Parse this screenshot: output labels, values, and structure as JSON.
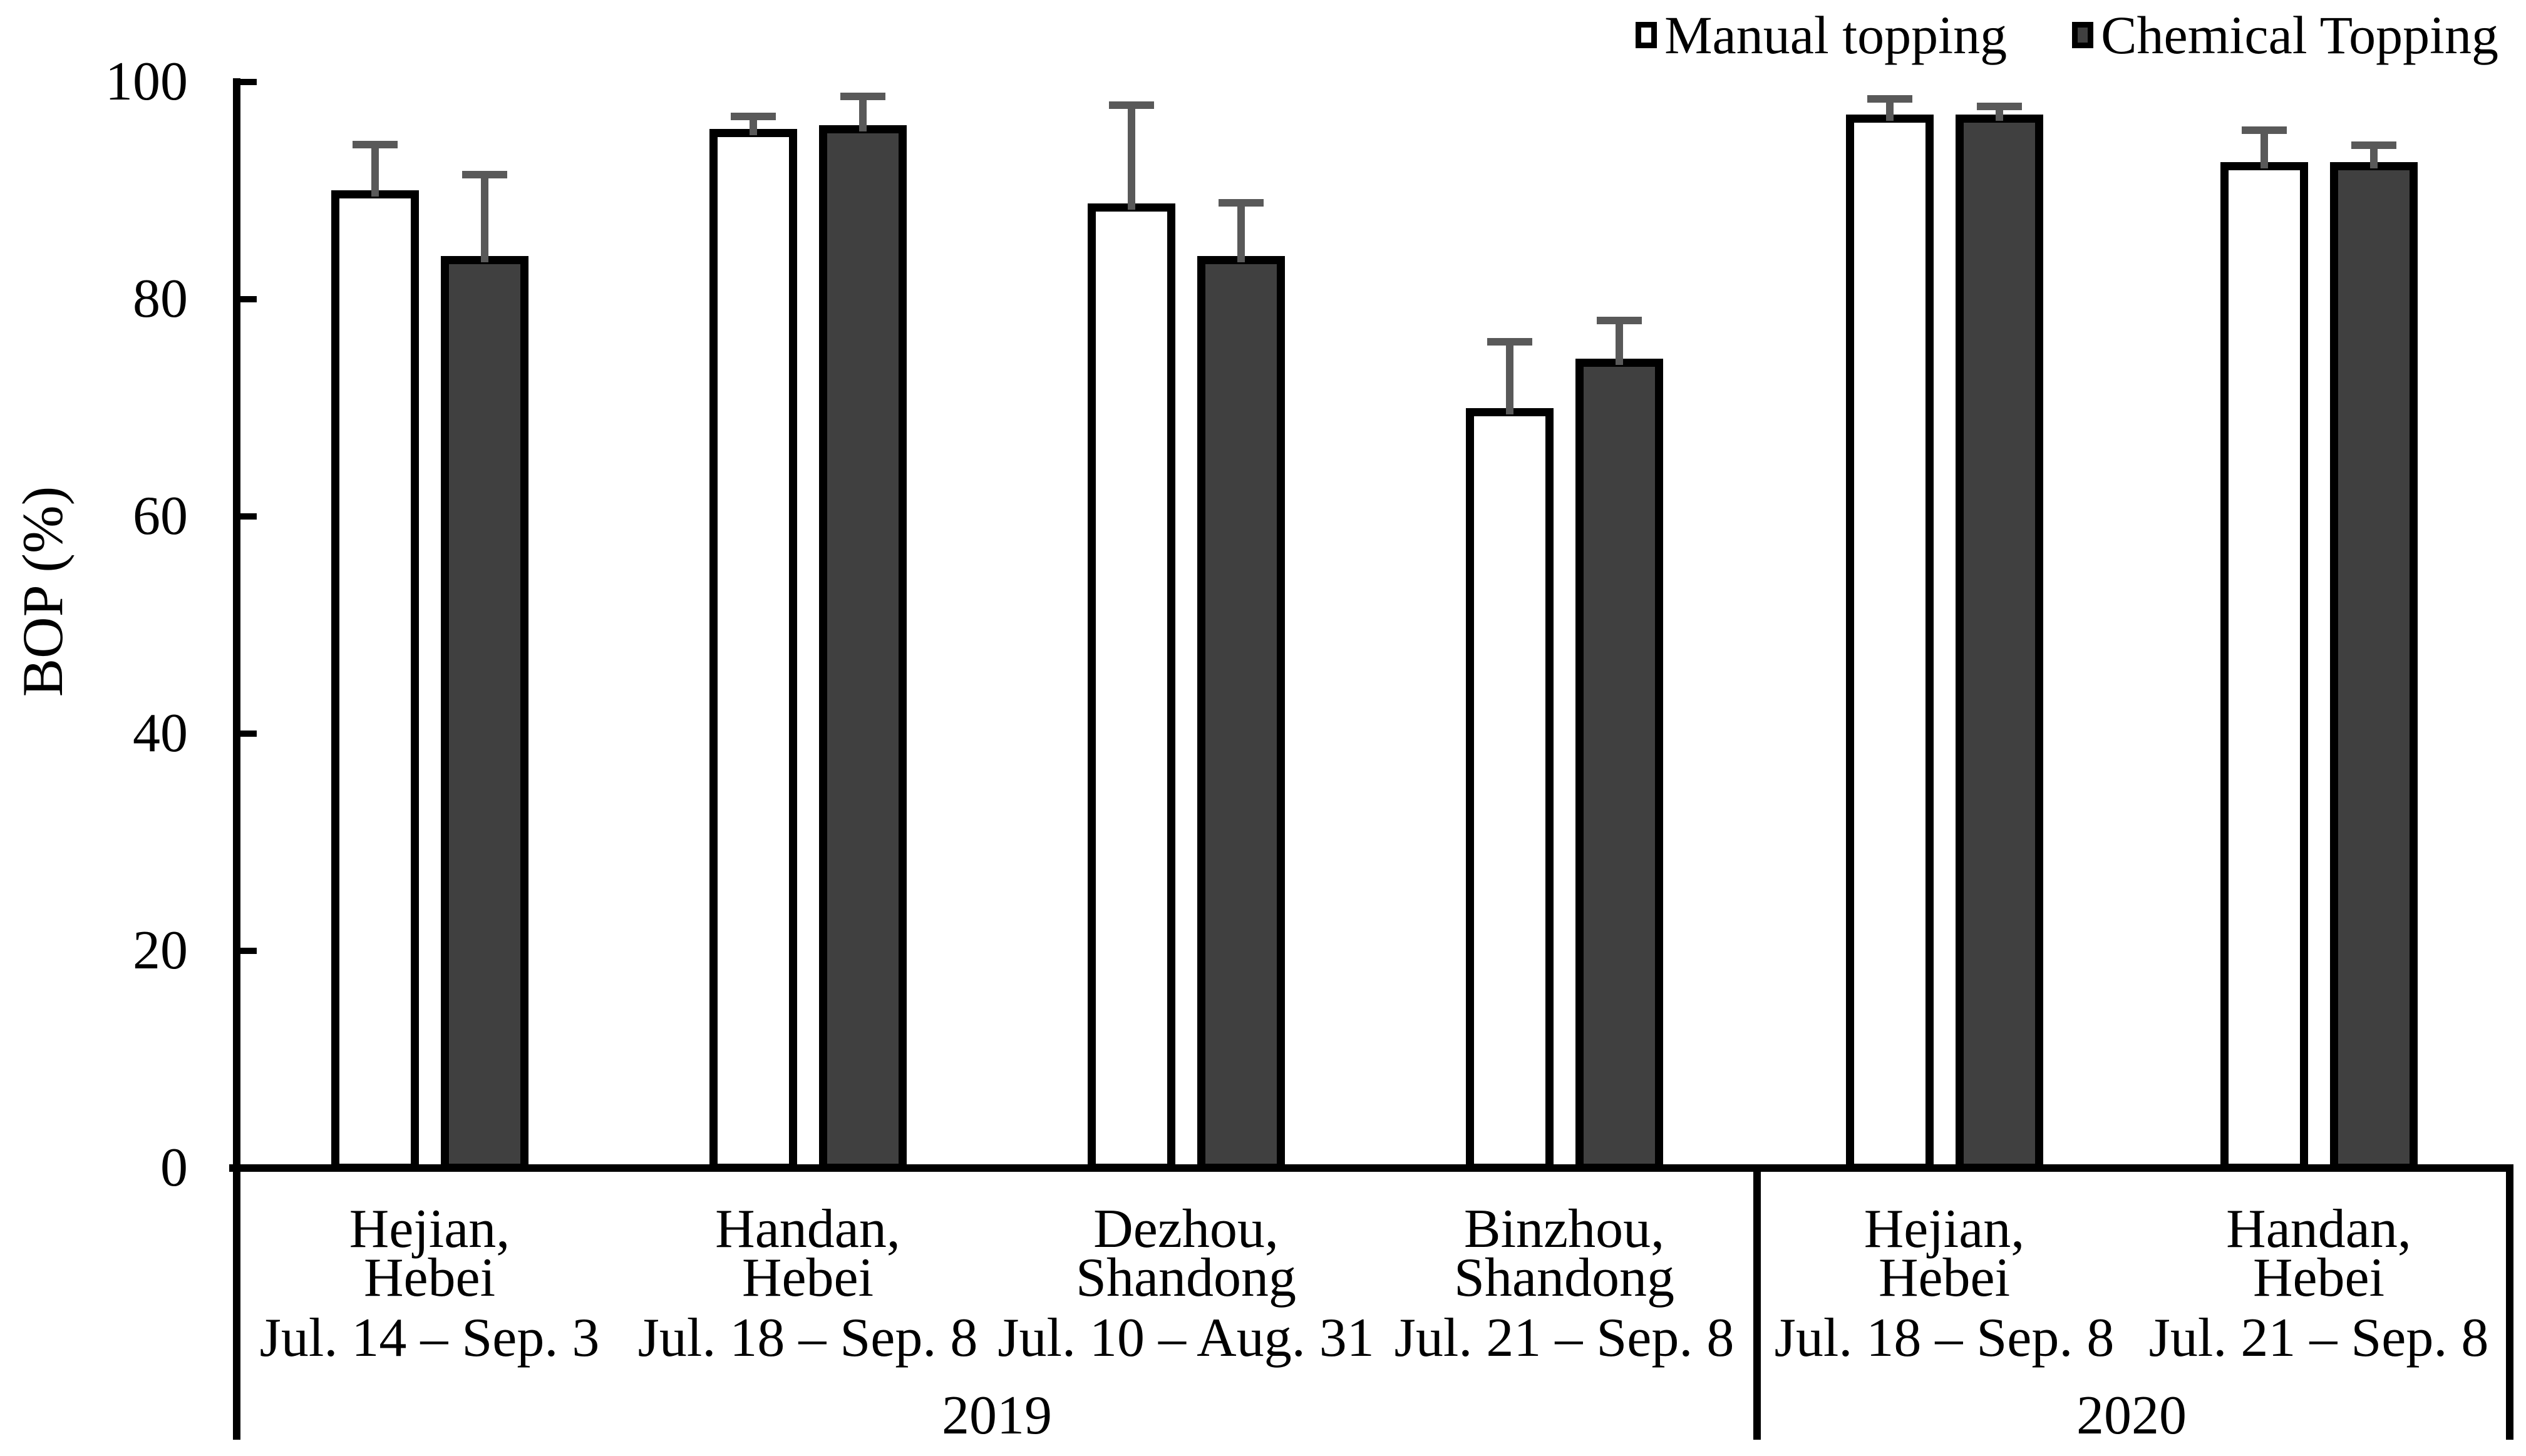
{
  "chart_data": {
    "type": "bar",
    "title": "",
    "ylabel": "BOP (%)",
    "ylim": [
      0,
      100
    ],
    "yticks": [
      0,
      20,
      40,
      60,
      80,
      100
    ],
    "grid": false,
    "legend_position": "top-right",
    "series": [
      {
        "name": "Manual topping",
        "key": "manual"
      },
      {
        "name": "Chemical Topping",
        "key": "chemical"
      }
    ],
    "colors": {
      "manual_fill": "#FFFFFF",
      "chemical_fill": "#404040",
      "bar_border": "#000000",
      "error_bar": "#595959",
      "text": "#000000"
    },
    "sections": [
      {
        "year": "2019",
        "groups": [
          {
            "location": [
              "Hejian,",
              "Hebei"
            ],
            "dates": "Jul. 14 – Sep. 3",
            "manual": {
              "value": 90.0,
              "error": 4.6
            },
            "chemical": {
              "value": 84.0,
              "error": 7.8
            }
          },
          {
            "location": [
              "Handan,",
              "Hebei"
            ],
            "dates": "Jul. 18 – Sep. 8",
            "manual": {
              "value": 95.7,
              "error": 1.5
            },
            "chemical": {
              "value": 96.0,
              "error": 3.0
            }
          },
          {
            "location": [
              "Dezhou,",
              "Shandong"
            ],
            "dates": "Jul. 10 – Aug. 31",
            "manual": {
              "value": 88.8,
              "error": 9.4
            },
            "chemical": {
              "value": 84.0,
              "error": 5.2
            }
          },
          {
            "location": [
              "Binzhou,",
              "Shandong"
            ],
            "dates": "Jul. 21 – Sep. 8",
            "manual": {
              "value": 70.0,
              "error": 6.4
            },
            "chemical": {
              "value": 74.5,
              "error": 3.9
            }
          }
        ]
      },
      {
        "year": "2020",
        "groups": [
          {
            "location": [
              "Hejian,",
              "Hebei"
            ],
            "dates": "Jul. 18 – Sep. 8",
            "manual": {
              "value": 97.0,
              "error": 1.8
            },
            "chemical": {
              "value": 97.0,
              "error": 1.1
            }
          },
          {
            "location": [
              "Handan,",
              "Hebei"
            ],
            "dates": "Jul. 21 – Sep. 8",
            "manual": {
              "value": 92.6,
              "error": 3.3
            },
            "chemical": {
              "value": 92.6,
              "error": 1.9
            }
          }
        ]
      }
    ]
  }
}
